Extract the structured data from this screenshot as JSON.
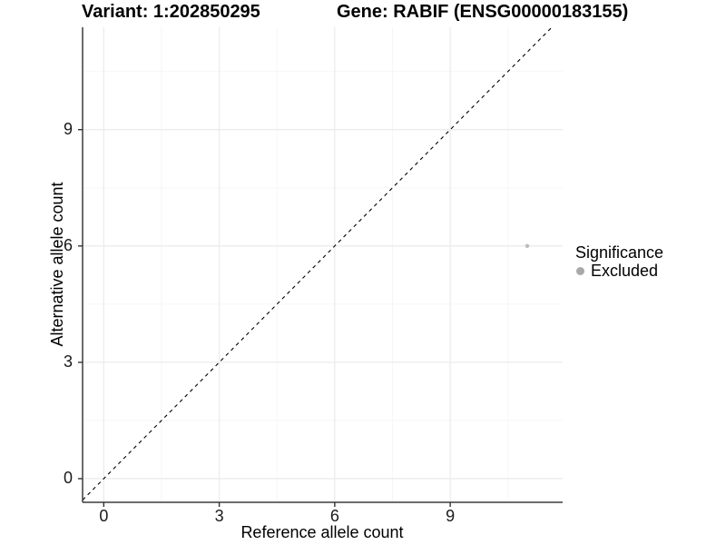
{
  "chart_data": {
    "type": "scatter",
    "titles": [
      "Variant: 1:202850295",
      "Gene: RABIF (ENSG00000183155)"
    ],
    "xlabel": "Reference allele count",
    "ylabel": "Alternative allele count",
    "xlim": [
      -0.55,
      11.92
    ],
    "ylim": [
      -0.61,
      11.64
    ],
    "x_ticks": [
      0,
      3,
      6,
      9
    ],
    "y_ticks": [
      0,
      3,
      6,
      9
    ],
    "x_minor_ticks": [
      1.5,
      4.5,
      7.5,
      10.5
    ],
    "y_minor_ticks": [
      1.5,
      4.5,
      7.5,
      10.5
    ],
    "grid": "major+minor",
    "identity_line": {
      "style": "dashed",
      "label": "y = x"
    },
    "series": [
      {
        "name": "Excluded",
        "color": "#bbbbbb",
        "points": [
          [
            11,
            6
          ]
        ]
      }
    ],
    "legend": {
      "title": "Significance",
      "position": "right",
      "entries": [
        {
          "label": "Excluded",
          "marker_color": "#a9a9a9"
        }
      ]
    }
  },
  "colors": {
    "background": "#ffffff",
    "grid_major": "#ececec",
    "grid_minor": "#f5f5f5",
    "axis_line": "#3c3c3c",
    "tick_mark": "#333333",
    "identity_line": "#000000"
  }
}
